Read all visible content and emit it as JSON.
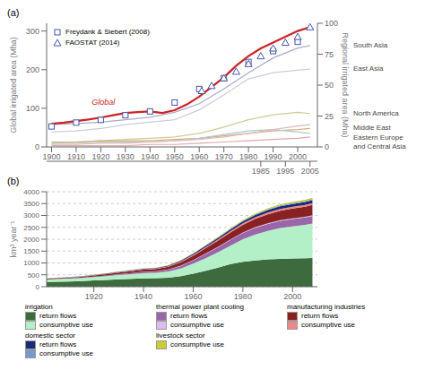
{
  "chart_data": [
    {
      "type": "line",
      "title": "(a)",
      "ylabel": "Global irrigated area (Mha)",
      "y2label": "Regional irrigated area (Mha)",
      "xlim": [
        1898,
        2008
      ],
      "xticks": [
        1900,
        1910,
        1920,
        1930,
        1940,
        1950,
        1960,
        1970,
        1980,
        1990,
        2000
      ],
      "x2ticks": [
        1985,
        1995,
        2005
      ],
      "ylim": [
        0,
        320
      ],
      "yticks": [
        0,
        100,
        200,
        300
      ],
      "y2lim": [
        0,
        100
      ],
      "y2ticks": [
        0,
        25,
        50,
        75,
        100
      ],
      "grid": false,
      "legend": "upper left",
      "annotations": [
        {
          "text": "Global",
          "x": 1921,
          "y": 97,
          "color": "#cc2222"
        }
      ],
      "series": [
        {
          "name": "South Asia",
          "axis": "y2",
          "color": "#aaaacc",
          "x": [
            1900,
            1910,
            1920,
            1930,
            1940,
            1950,
            1960,
            1970,
            1980,
            1990,
            2000,
            2005
          ],
          "values": [
            18,
            19,
            20,
            22,
            24,
            28,
            35,
            47,
            60,
            72,
            80,
            82
          ]
        },
        {
          "name": "East Asia",
          "axis": "y2",
          "color": "#ccccdd",
          "x": [
            1900,
            1910,
            1920,
            1930,
            1940,
            1950,
            1960,
            1970,
            1980,
            1990,
            2000,
            2005
          ],
          "values": [
            12,
            13,
            15,
            18,
            20,
            22,
            30,
            42,
            55,
            60,
            62,
            63
          ]
        },
        {
          "name": "North America",
          "axis": "y2",
          "color": "#cccc99",
          "x": [
            1900,
            1910,
            1920,
            1930,
            1940,
            1950,
            1960,
            1970,
            1980,
            1990,
            2000,
            2005
          ],
          "values": [
            3,
            4,
            5,
            6,
            7,
            8,
            11,
            16,
            22,
            26,
            28,
            27
          ]
        },
        {
          "name": "Middle East",
          "axis": "y2",
          "color": "#ddaa77",
          "x": [
            1900,
            1910,
            1920,
            1930,
            1940,
            1950,
            1960,
            1970,
            1980,
            1990,
            2000,
            2005
          ],
          "values": [
            4,
            4,
            5,
            5,
            5,
            6,
            7,
            9,
            11,
            13,
            14,
            15
          ]
        },
        {
          "name": "Eastern Europe\nand Central Asia",
          "axis": "y2",
          "color": "#aacccc",
          "x": [
            1900,
            1910,
            1920,
            1930,
            1940,
            1950,
            1960,
            1970,
            1980,
            1990,
            2000,
            2005
          ],
          "values": [
            3,
            3,
            4,
            4,
            4,
            5,
            7,
            10,
            13,
            14,
            12,
            11
          ]
        },
        {
          "axis": "y2",
          "color": "#ddaaaa",
          "x": [
            1900,
            1910,
            1920,
            1930,
            1940,
            1950,
            1960,
            1970,
            1980,
            1990,
            2000,
            2005
          ],
          "values": [
            1,
            1,
            1,
            1,
            2,
            2,
            3,
            4,
            5,
            6,
            7,
            8
          ]
        },
        {
          "axis": "y2",
          "color": "#ddbbbb",
          "x": [
            1900,
            1910,
            1920,
            1930,
            1940,
            1950,
            1960,
            1970,
            1980,
            1990,
            2000,
            2005
          ],
          "values": [
            2,
            2,
            3,
            3,
            4,
            5,
            6,
            8,
            11,
            14,
            17,
            18
          ]
        },
        {
          "color": "#cc2222",
          "x": [
            1900,
            1905,
            1910,
            1915,
            1920,
            1925,
            1930,
            1935,
            1940,
            1945,
            1950,
            1955,
            1960,
            1965,
            1970,
            1975,
            1980,
            1985,
            1990,
            1995,
            2000,
            2005
          ],
          "values": [
            60,
            63,
            67,
            71,
            76,
            82,
            88,
            90,
            92,
            88,
            95,
            110,
            130,
            155,
            180,
            210,
            235,
            255,
            270,
            285,
            300,
            310
          ]
        },
        {
          "type": "scatter",
          "marker": "square",
          "name": "Freydank & Siebert (2008)",
          "color": "#4455aa",
          "x": [
            1900,
            1910,
            1920,
            1930,
            1940,
            1950,
            1960,
            1970,
            1980,
            1990,
            2000
          ],
          "values": [
            53,
            63,
            70,
            82,
            92,
            115,
            150,
            178,
            220,
            248,
            272
          ]
        },
        {
          "type": "scatter",
          "marker": "triangle",
          "name": "FAOSTAT (2014)",
          "color": "#4455aa",
          "x": [
            1961,
            1965,
            1970,
            1975,
            1980,
            1985,
            1990,
            1995,
            2000,
            2005
          ],
          "values": [
            145,
            158,
            178,
            195,
            215,
            235,
            255,
            270,
            285,
            310
          ]
        }
      ]
    },
    {
      "type": "area",
      "stacked": true,
      "title": "(b)",
      "ylabel": "km³ year⁻¹",
      "x": [
        1901,
        1905,
        1910,
        1915,
        1920,
        1925,
        1930,
        1935,
        1940,
        1945,
        1950,
        1955,
        1960,
        1965,
        1970,
        1975,
        1980,
        1985,
        1990,
        1995,
        2000,
        2005,
        2008
      ],
      "xlim": [
        1901,
        2010
      ],
      "xticks": [
        1920,
        1940,
        1960,
        1980,
        2000
      ],
      "ylim": [
        0,
        4000
      ],
      "yticks": [
        0,
        500,
        1000,
        1500,
        2000,
        2500,
        3000,
        3500,
        4000
      ],
      "grid": true,
      "series": [
        {
          "name": "return flows",
          "group": "irrigation",
          "color": "#3d6b3d",
          "values": [
            200,
            210,
            220,
            235,
            260,
            285,
            310,
            330,
            350,
            355,
            380,
            440,
            550,
            670,
            800,
            950,
            1050,
            1100,
            1150,
            1170,
            1190,
            1200,
            1210
          ]
        },
        {
          "name": "consumptive use",
          "group": "irrigation",
          "color": "#b3f0c8",
          "values": [
            100,
            110,
            120,
            130,
            145,
            160,
            180,
            200,
            220,
            230,
            260,
            320,
            420,
            530,
            650,
            780,
            950,
            1100,
            1200,
            1300,
            1350,
            1400,
            1450
          ]
        },
        {
          "name": "return flows",
          "group": "thermal power plant cooling",
          "color": "#9966aa",
          "values": [
            5,
            7,
            10,
            13,
            18,
            24,
            32,
            42,
            55,
            60,
            80,
            110,
            140,
            180,
            210,
            240,
            260,
            280,
            290,
            300,
            310,
            315,
            320
          ]
        },
        {
          "name": "consumptive use",
          "group": "thermal power plant cooling",
          "color": "#ddbbee",
          "values": [
            1,
            2,
            2,
            3,
            4,
            5,
            6,
            7,
            8,
            8,
            10,
            13,
            16,
            19,
            22,
            24,
            26,
            28,
            29,
            30,
            31,
            31,
            32
          ]
        },
        {
          "name": "return flows",
          "group": "manufacturing industries",
          "color": "#882222",
          "values": [
            20,
            25,
            30,
            35,
            45,
            55,
            65,
            75,
            85,
            90,
            110,
            150,
            180,
            220,
            260,
            290,
            320,
            350,
            380,
            400,
            410,
            420,
            430
          ]
        },
        {
          "name": "consumptive use",
          "group": "manufacturing industries",
          "color": "#ee8888",
          "values": [
            5,
            6,
            7,
            8,
            10,
            12,
            14,
            16,
            18,
            19,
            22,
            28,
            35,
            42,
            50,
            55,
            60,
            65,
            70,
            72,
            74,
            75,
            76
          ]
        },
        {
          "name": "return flows",
          "group": "domestic sector",
          "color": "#1a2a7a",
          "values": [
            8,
            9,
            10,
            11,
            13,
            15,
            17,
            19,
            22,
            24,
            28,
            35,
            45,
            55,
            65,
            75,
            85,
            95,
            105,
            115,
            120,
            125,
            128
          ]
        },
        {
          "name": "consumptive use",
          "group": "domestic sector",
          "color": "#7799cc",
          "values": [
            2,
            3,
            3,
            4,
            4,
            5,
            5,
            6,
            7,
            7,
            8,
            10,
            13,
            16,
            19,
            22,
            25,
            28,
            31,
            34,
            36,
            37,
            38
          ]
        },
        {
          "name": "consumptive use",
          "group": "livestock sector",
          "color": "#cccc33",
          "values": [
            5,
            5,
            6,
            6,
            7,
            8,
            9,
            10,
            11,
            11,
            13,
            15,
            18,
            22,
            26,
            30,
            35,
            40,
            45,
            50,
            55,
            60,
            65
          ]
        }
      ]
    }
  ]
}
